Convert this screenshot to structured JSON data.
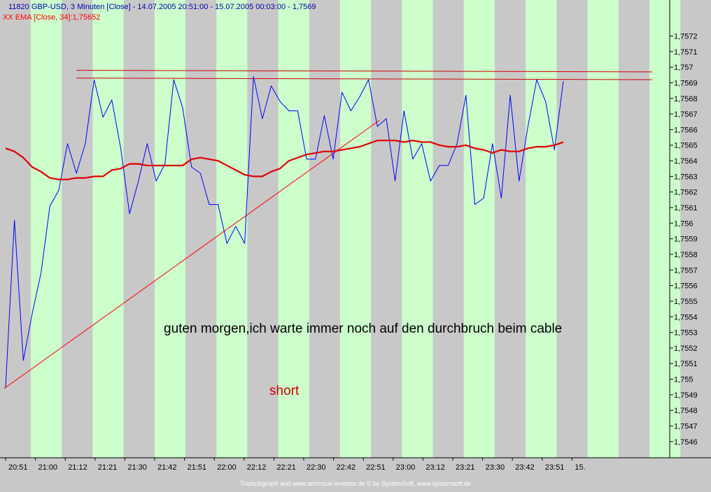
{
  "header": {
    "line1": "11820  GBP-USD, 3 Minuten [Close] - 14.07.2005 20:51:00 - 15.07.2005 00:03:00 - 1,7569",
    "line2": "XX EMA [Close, 34]:1,75652"
  },
  "annotations": {
    "comment": "guten morgen,ich warte immer noch auf den durchbruch beim cable",
    "short": "short"
  },
  "footer": "TradeSignal® and www.technical-investor.de © by SystemSoft, www.systemsoft.de",
  "colors": {
    "background": "#c8c8c8",
    "band_green": "#ccffcc",
    "price_line": "#0000ff",
    "ema_line": "#e00000",
    "trend_line": "#ff0000",
    "resistance_line": "#d00000",
    "header_text": "#0000aa",
    "ema_label": "#ff0000"
  },
  "chart_data": {
    "type": "line",
    "title": "GBP-USD, 3 Minuten [Close]",
    "ylim": [
      1.75455,
      1.75735
    ],
    "y_ticks": [
      "1,7546",
      "1,7547",
      "1,7548",
      "1,7549",
      "1,755",
      "1,7551",
      "1,7552",
      "1,7553",
      "1,7554",
      "1,7555",
      "1,7556",
      "1,7557",
      "1,7558",
      "1,7559",
      "1,756",
      "1,7561",
      "1,7562",
      "1,7563",
      "1,7564",
      "1,7565",
      "1,7566",
      "1,7567",
      "1,7568",
      "1,7569",
      "1,757",
      "1,7571",
      "1,7572"
    ],
    "x_tick_labels": [
      "20:51",
      "21:00",
      "21:12",
      "21:21",
      "21:30",
      "21:42",
      "21:51",
      "22:00",
      "22:12",
      "22:21",
      "22:30",
      "22:42",
      "22:51",
      "23:00",
      "23:12",
      "23:21",
      "23:30",
      "23:42",
      "23:51",
      "15."
    ],
    "band_count": 23,
    "series": [
      {
        "name": "GBP-USD Close",
        "values": [
          1.75495,
          1.75602,
          1.75512,
          1.75542,
          1.75568,
          1.75611,
          1.75621,
          1.75651,
          1.75632,
          1.75651,
          1.75692,
          1.75668,
          1.75679,
          1.75648,
          1.75606,
          1.75627,
          1.75651,
          1.75627,
          1.75638,
          1.75692,
          1.75674,
          1.75636,
          1.75632,
          1.75612,
          1.75612,
          1.75587,
          1.75598,
          1.75587,
          1.75694,
          1.75667,
          1.75688,
          1.75678,
          1.75672,
          1.75672,
          1.75641,
          1.75641,
          1.75669,
          1.75641,
          1.75684,
          1.75672,
          1.75681,
          1.75692,
          1.75662,
          1.75667,
          1.75627,
          1.75672,
          1.75641,
          1.75651,
          1.75627,
          1.75637,
          1.75637,
          1.75651,
          1.75682,
          1.75612,
          1.75616,
          1.75651,
          1.75616,
          1.75682,
          1.75627,
          1.75662,
          1.75692,
          1.75678,
          1.75647,
          1.75691
        ]
      },
      {
        "name": "EMA [Close, 34]",
        "values": [
          1.75648,
          1.75646,
          1.75642,
          1.75636,
          1.75633,
          1.75629,
          1.75628,
          1.75628,
          1.75629,
          1.75629,
          1.7563,
          1.7563,
          1.75634,
          1.75635,
          1.75638,
          1.75638,
          1.75637,
          1.75637,
          1.75637,
          1.75637,
          1.75637,
          1.75641,
          1.75642,
          1.75641,
          1.7564,
          1.75637,
          1.75634,
          1.75631,
          1.7563,
          1.7563,
          1.75633,
          1.75635,
          1.7564,
          1.75642,
          1.75644,
          1.75645,
          1.75646,
          1.75646,
          1.75647,
          1.75648,
          1.75649,
          1.75651,
          1.75653,
          1.75653,
          1.75653,
          1.75652,
          1.75653,
          1.75652,
          1.75652,
          1.7565,
          1.75649,
          1.75649,
          1.7565,
          1.75648,
          1.75647,
          1.75645,
          1.75647,
          1.75646,
          1.75646,
          1.75648,
          1.75649,
          1.75649,
          1.7565,
          1.75652
        ]
      }
    ],
    "trend_line": {
      "from": [
        0,
        1.75494
      ],
      "to": [
        42,
        1.75666
      ]
    },
    "resistance_lines": [
      {
        "from": [
          8,
          1.75698
        ],
        "to": [
          63,
          1.75697
        ]
      },
      {
        "from": [
          8,
          1.75693
        ],
        "to": [
          63,
          1.75692
        ]
      }
    ]
  }
}
